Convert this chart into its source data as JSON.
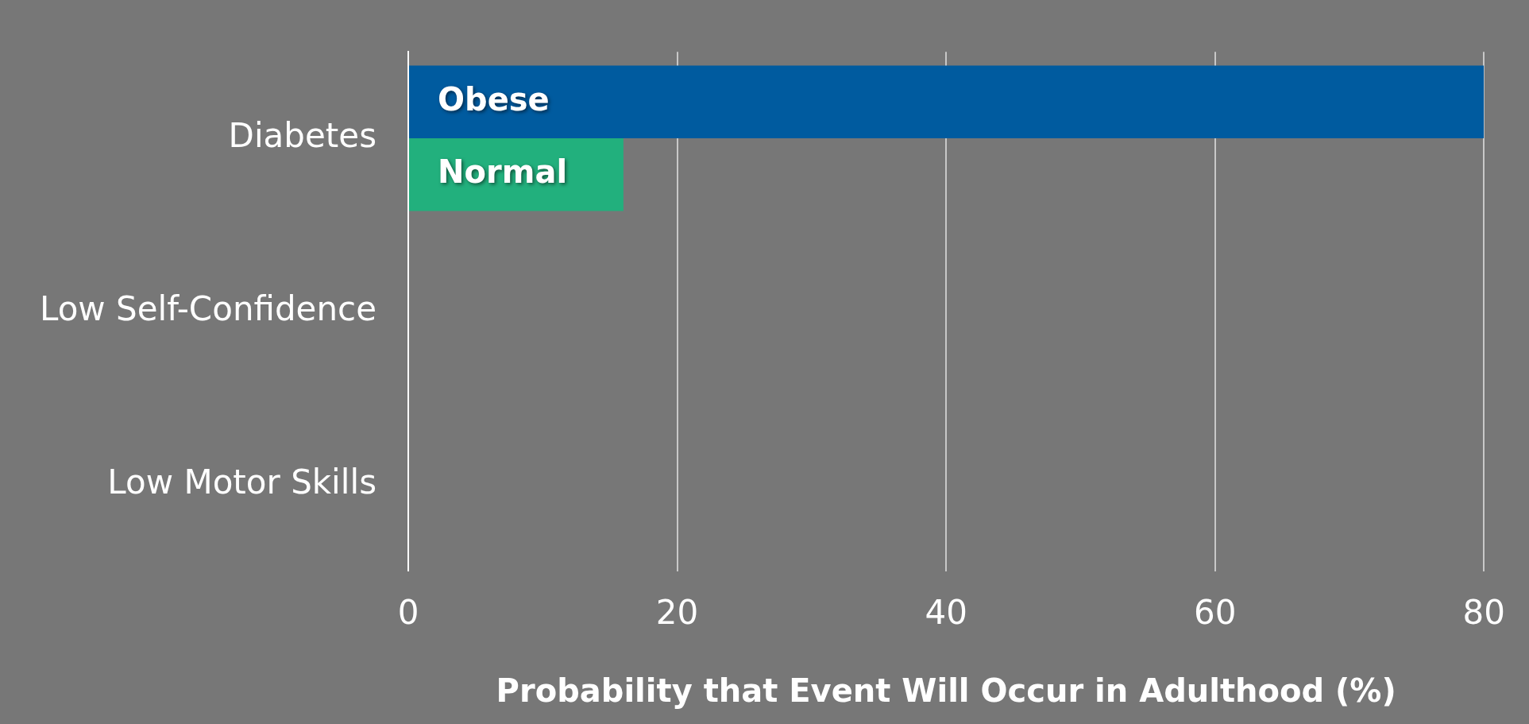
{
  "chart_data": {
    "type": "bar",
    "orientation": "horizontal",
    "xlabel": "Probability that Event Will Occur in Adulthood (%)",
    "categories": [
      "Diabetes",
      "Low Self-Confidence",
      "Low Motor Skills"
    ],
    "series": [
      {
        "name": "Obese",
        "color": "#005b9f",
        "values": [
          80,
          null,
          null
        ]
      },
      {
        "name": "Normal",
        "color": "#22b07d",
        "values": [
          16,
          null,
          null
        ]
      }
    ],
    "xlim": [
      0,
      80
    ],
    "xticks": [
      0,
      20,
      40,
      60,
      80
    ],
    "grid": "x"
  }
}
